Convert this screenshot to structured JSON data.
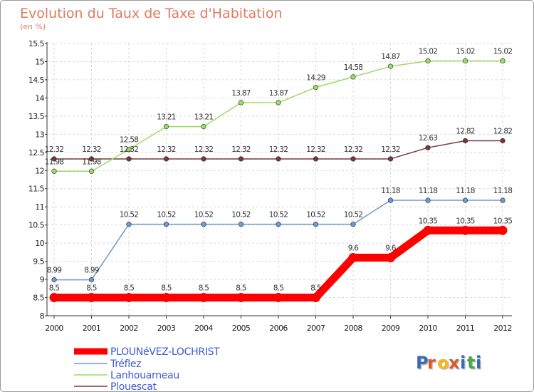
{
  "chart_data": {
    "type": "line",
    "title": "Evolution du Taux de Taxe d'Habitation",
    "subtitle": "(en %)",
    "x": [
      "2000",
      "2001",
      "2002",
      "2003",
      "2004",
      "2005",
      "2006",
      "2007",
      "2008",
      "2009",
      "2010",
      "2011",
      "2012"
    ],
    "yticks": [
      "8",
      "8.5",
      "9",
      "9.5",
      "10",
      "10.5",
      "11",
      "11.5",
      "12",
      "12.5",
      "13",
      "13.5",
      "14",
      "14.5",
      "15",
      "15.5"
    ],
    "ylim": [
      8,
      15.5
    ],
    "grid": true,
    "legend_position": "bottom-left",
    "series": [
      {
        "name": "PLOUNéVEZ-LOCHRIST",
        "color": "#ff0000",
        "values": [
          8.5,
          8.5,
          8.5,
          8.5,
          8.5,
          8.5,
          8.5,
          8.5,
          9.6,
          9.6,
          10.35,
          10.35,
          10.35
        ],
        "labels": [
          "8.5",
          "8.5",
          "8.5",
          "8.5",
          "8.5",
          "8.5",
          "8.5",
          "8.5",
          "9.6",
          "9.6",
          "10.35",
          "10.35",
          "10.35"
        ]
      },
      {
        "name": "Tréflez",
        "color": "#6b9bd1",
        "values": [
          8.99,
          8.99,
          10.52,
          10.52,
          10.52,
          10.52,
          10.52,
          10.52,
          10.52,
          11.18,
          11.18,
          11.18,
          11.18
        ],
        "labels": [
          "8.99",
          "8.99",
          "10.52",
          "10.52",
          "10.52",
          "10.52",
          "10.52",
          "10.52",
          "10.52",
          "11.18",
          "11.18",
          "11.18",
          "11.18"
        ]
      },
      {
        "name": "Lanhouarneau",
        "color": "#99dd66",
        "values": [
          11.98,
          11.98,
          12.58,
          13.21,
          13.21,
          13.87,
          13.87,
          14.29,
          14.58,
          14.87,
          15.02,
          15.02,
          15.02
        ],
        "labels": [
          "11.98",
          "11.98",
          "12.58",
          "13.21",
          "13.21",
          "13.87",
          "13.87",
          "14.29",
          "14.58",
          "14.87",
          "15.02",
          "15.02",
          "15.02"
        ]
      },
      {
        "name": "Plouescat",
        "color": "#7a3838",
        "values": [
          12.32,
          12.32,
          12.32,
          12.32,
          12.32,
          12.32,
          12.32,
          12.32,
          12.32,
          12.32,
          12.63,
          12.82,
          12.82
        ],
        "labels": [
          "12.32",
          "12.32",
          "12.32",
          "12.32",
          "12.32",
          "12.32",
          "12.32",
          "12.32",
          "12.32",
          "12.32",
          "12.63",
          "12.82",
          "12.82"
        ]
      }
    ]
  },
  "logo": {
    "text": "Proxiti",
    "letters": [
      "P",
      "r",
      "o",
      "x",
      "i",
      "t",
      "i"
    ],
    "colors": [
      "#3a6ab5",
      "#e0542a",
      "#f3b81a",
      "#e0542a",
      "#3a6ab5",
      "#48a54b",
      "#3a6ab5"
    ]
  }
}
